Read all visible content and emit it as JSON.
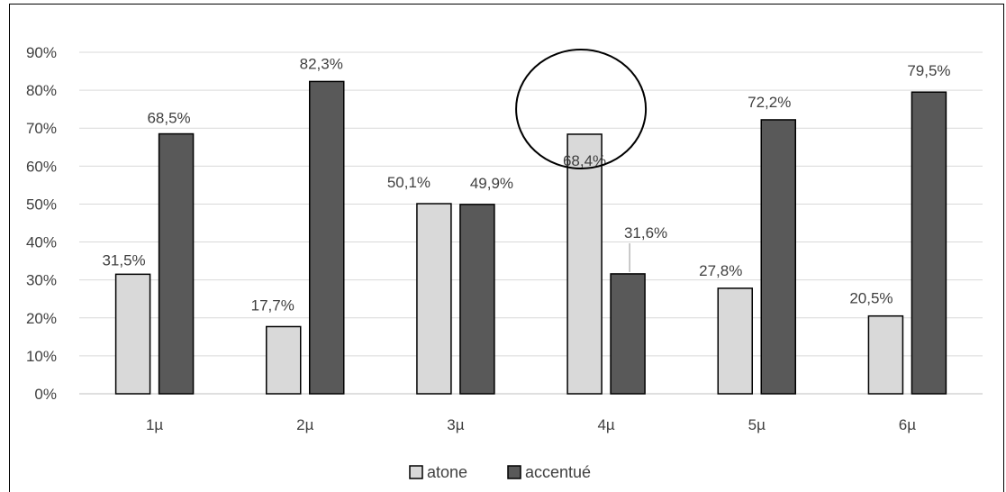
{
  "chart_data": {
    "type": "bar",
    "title": "",
    "xlabel": "",
    "ylabel": "",
    "ylim": [
      0,
      90
    ],
    "yticks": [
      "0%",
      "10%",
      "20%",
      "30%",
      "40%",
      "50%",
      "60%",
      "70%",
      "80%",
      "90%"
    ],
    "grid": true,
    "categories": [
      "1µ",
      "2µ",
      "3µ",
      "4µ",
      "5µ",
      "6µ"
    ],
    "series": [
      {
        "name": "atone",
        "color": "#d9d9d9",
        "values": [
          31.5,
          17.7,
          50.1,
          68.4,
          27.8,
          20.5
        ],
        "labels": [
          "31,5%",
          "17,7%",
          "50,1%",
          "68,4%",
          "27,8%",
          "20,5%"
        ]
      },
      {
        "name": "accentué",
        "color": "#595959",
        "values": [
          68.5,
          82.3,
          49.9,
          31.6,
          72.2,
          79.5
        ],
        "labels": [
          "68,5%",
          "82,3%",
          "49,9%",
          "31,6%",
          "72,2%",
          "79,5%"
        ]
      }
    ],
    "legend_position": "bottom",
    "annotation": {
      "shape": "ellipse",
      "highlight": "4µ atone 68,4%"
    }
  }
}
